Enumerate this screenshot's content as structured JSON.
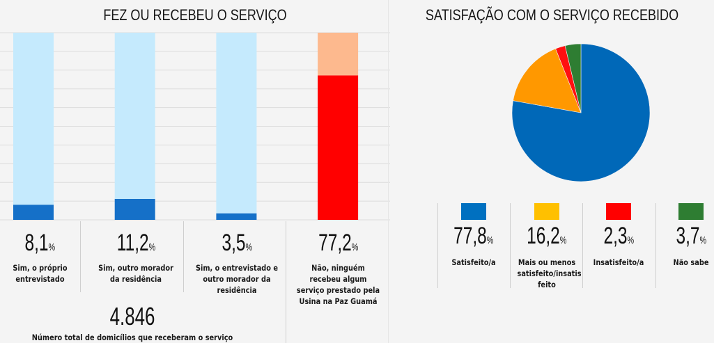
{
  "left_panel": {
    "title": "FEZ OU RECEBEU  O SERVIÇO",
    "items": [
      {
        "value": "8,1",
        "unit": "%",
        "label": "Sim, o próprio entrevistado"
      },
      {
        "value": "11,2",
        "unit": "%",
        "label": "Sim, outro morador da residência"
      },
      {
        "value": "3,5",
        "unit": "%",
        "label": "Sim, o entrevistado e outro morador da residência"
      },
      {
        "value": "77,2",
        "unit": "%",
        "label": "Não, ninguém recebeu algum serviço prestado pela Usina na Paz Guamá"
      }
    ],
    "total_value": "4.846",
    "total_label": "Número total de domicílios que receberam o serviço"
  },
  "right_panel": {
    "title": "SATISFAÇÃO COM O SERVIÇO RECEBIDO",
    "items": [
      {
        "value": "77,8",
        "unit": "%",
        "label": "Satisfeito/a",
        "color": "#0070c0"
      },
      {
        "value": "16,2",
        "unit": "%",
        "label": "Mais ou menos satisfeito/insatis feito",
        "color": "#ffc000"
      },
      {
        "value": "2,3",
        "unit": "%",
        "label": "Insatisfeito/a",
        "color": "#ff0000"
      },
      {
        "value": "3,7",
        "unit": "%",
        "label": "Não sabe",
        "color": "#2e7d32"
      }
    ]
  },
  "chart_data": [
    {
      "type": "bar",
      "stacked": true,
      "title": "FEZ OU RECEBEU  O SERVIÇO",
      "categories": [
        "Sim, o próprio entrevistado",
        "Sim, outro morador da residência",
        "Sim, o entrevistado e outro morador da residência",
        "Não, ninguém recebeu algum serviço prestado pela Usina na Paz Guamá"
      ],
      "series": [
        {
          "name": "value",
          "values": [
            8.1,
            11.2,
            3.5,
            77.2
          ],
          "colors": [
            "#1570c8",
            "#1570c8",
            "#1570c8",
            "#ff0000"
          ]
        },
        {
          "name": "remainder",
          "values": [
            91.9,
            88.8,
            96.5,
            22.8
          ],
          "colors": [
            "#c5eafd",
            "#c5eafd",
            "#c5eafd",
            "#fdb98e"
          ]
        }
      ],
      "ylim": [
        0,
        100
      ],
      "grid": true,
      "gridline_step": 10
    },
    {
      "type": "pie",
      "title": "SATISFAÇÃO COM O SERVIÇO RECEBIDO",
      "labels": [
        "Satisfeito/a",
        "Mais ou menos satisfeito/insatisfeito",
        "Insatisfeito/a",
        "Não sabe"
      ],
      "values": [
        77.8,
        16.2,
        2.3,
        3.7
      ],
      "colors": [
        "#0068b8",
        "#ff9800",
        "#ff1010",
        "#2e7d32"
      ],
      "start": "12 o'clock",
      "direction": "clockwise"
    }
  ]
}
